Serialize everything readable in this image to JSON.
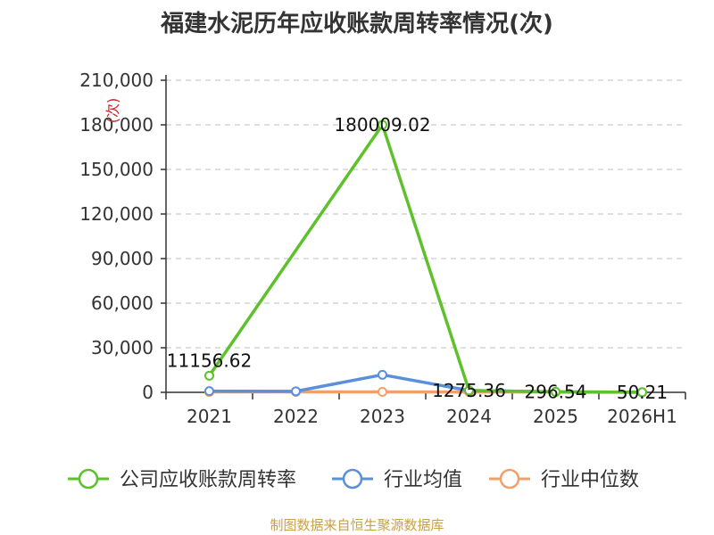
{
  "chart_data": {
    "type": "line",
    "title": "福建水泥历年应收账款周转率情况(次)",
    "ylabel": "(次)",
    "xlabel": "",
    "categories": [
      "2021",
      "2022",
      "2023",
      "2024",
      "2025",
      "2026H1"
    ],
    "ylim": [
      0,
      210000
    ],
    "yticks": [
      0,
      30000,
      60000,
      90000,
      120000,
      150000,
      180000,
      210000
    ],
    "ytick_labels": [
      "0",
      "30,000",
      "60,000",
      "90,000",
      "120,000",
      "150,000",
      "180,000",
      "210,000"
    ],
    "grid": true,
    "legend_position": "bottom",
    "series": [
      {
        "name": "公司应收账款周转率",
        "color": "#5ec12b",
        "values": [
          11156.62,
          null,
          180009.02,
          1275.36,
          296.54,
          50.21
        ],
        "labels": [
          "11156.62",
          "",
          "180009.02",
          "1275.36",
          "296.54",
          "50.21"
        ]
      },
      {
        "name": "行业均值",
        "color": "#5a8fdc",
        "values": [
          800,
          700,
          11800,
          1200,
          350,
          60
        ]
      },
      {
        "name": "行业中位数",
        "color": "#f2a06a",
        "values": [
          300,
          300,
          300,
          250,
          200,
          40
        ]
      }
    ]
  },
  "source": "制图数据来自恒生聚源数据库"
}
